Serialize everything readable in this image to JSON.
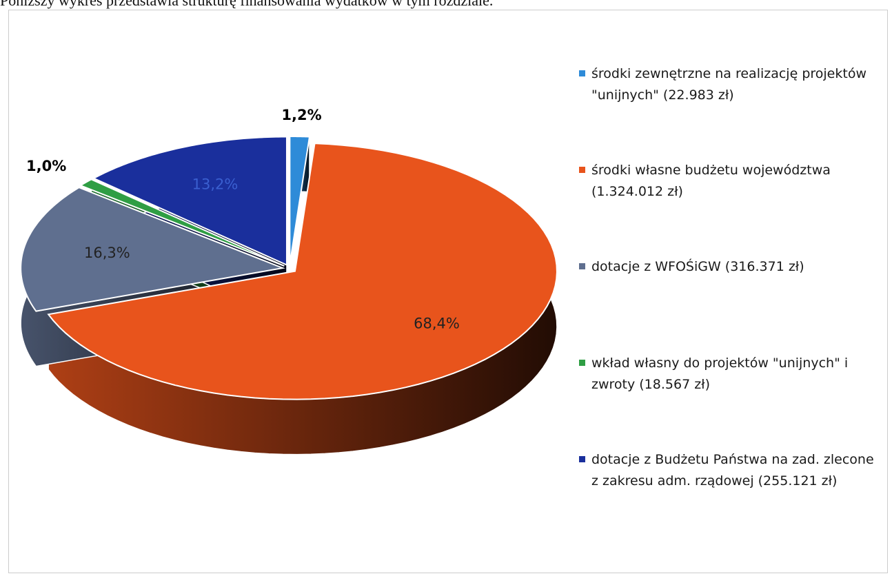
{
  "intro": "Poniższy wykres przedstawia strukturę finansowania wydatków w tym rozdziale.",
  "chart_data": {
    "type": "pie3d",
    "categories": [
      "środki zewnętrzne na realizację projektów \"unijnych\" (22.983 zł)",
      "środki własne budżetu województwa (1.324.012 zł)",
      "dotacje z WFOŚiGW (316.371 zł)",
      "wkład własny do projektów \"unijnych\" i zwroty (18.567 zł)",
      "dotacje z Budżetu Państwa na zad. zlecone z zakresu adm. rządowej (255.121 zł)"
    ],
    "values": [
      1.2,
      68.4,
      16.3,
      1.0,
      13.2
    ],
    "value_labels": [
      "1,2%",
      "68,4%",
      "16,3%",
      "1,0%",
      "13,2%"
    ],
    "colors": [
      "#2e8bd8",
      "#e8541c",
      "#5f6f8f",
      "#2f9e44",
      "#1a2f9c"
    ],
    "legend": "right"
  }
}
